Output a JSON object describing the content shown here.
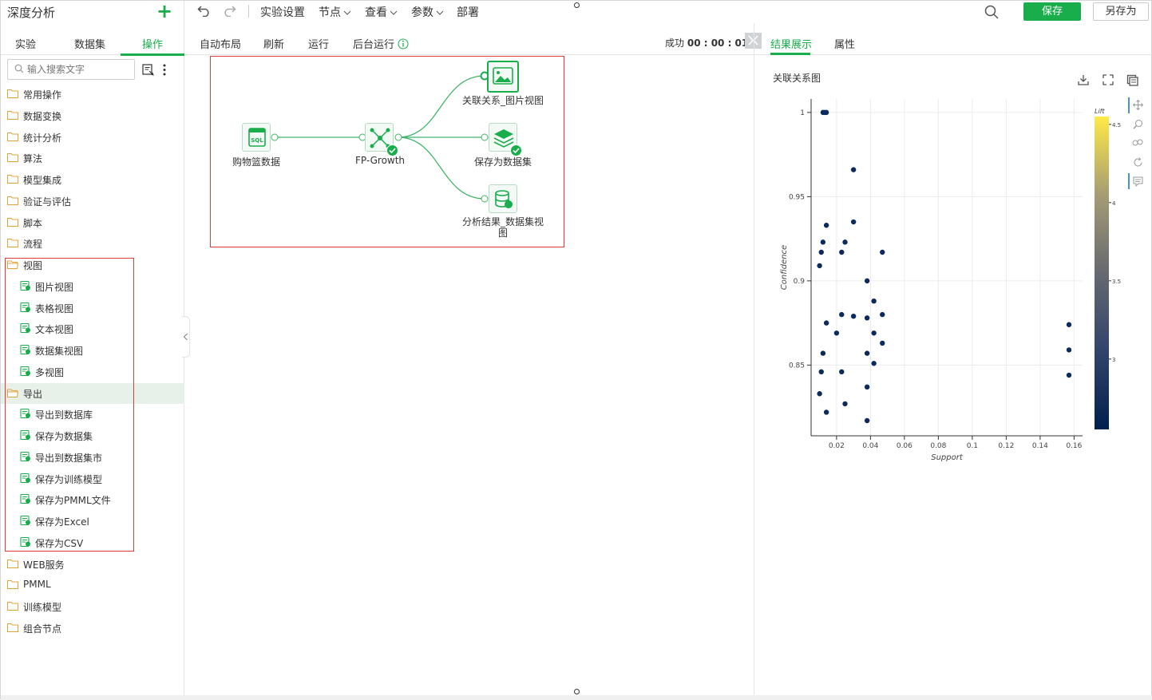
{
  "left_panel": {
    "title": "深度分析",
    "tabs": [
      "实验",
      "数据集",
      "操作"
    ],
    "search_placeholder": "输入搜索文字",
    "tree": [
      {
        "label": "常用操作",
        "type": "folder"
      },
      {
        "label": "数据变换",
        "type": "folder"
      },
      {
        "label": "统计分析",
        "type": "folder"
      },
      {
        "label": "算法",
        "type": "folder"
      },
      {
        "label": "模型集成",
        "type": "folder"
      },
      {
        "label": "验证与评估",
        "type": "folder"
      },
      {
        "label": "脚本",
        "type": "folder"
      },
      {
        "label": "流程",
        "type": "folder"
      },
      {
        "label": "视图",
        "type": "folder-open"
      },
      {
        "label": "图片视图",
        "type": "child"
      },
      {
        "label": "表格视图",
        "type": "child"
      },
      {
        "label": "文本视图",
        "type": "child"
      },
      {
        "label": "数据集视图",
        "type": "child"
      },
      {
        "label": "多视图",
        "type": "child"
      },
      {
        "label": "导出",
        "type": "folder-open",
        "selected": true
      },
      {
        "label": "导出到数据库",
        "type": "child"
      },
      {
        "label": "保存为数据集",
        "type": "child"
      },
      {
        "label": "导出到数据集市",
        "type": "child"
      },
      {
        "label": "保存为训练模型",
        "type": "child"
      },
      {
        "label": "保存为PMML文件",
        "type": "child"
      },
      {
        "label": "保存为Excel",
        "type": "child"
      },
      {
        "label": "保存为CSV",
        "type": "child"
      },
      {
        "label": "WEB服务",
        "type": "folder"
      },
      {
        "label": "PMML",
        "type": "folder"
      },
      {
        "label": "训练模型",
        "type": "folder"
      },
      {
        "label": "组合节点",
        "type": "folder"
      }
    ]
  },
  "toolbar": {
    "undo_icon": "undo-icon",
    "redo_icon": "redo-icon",
    "menu": [
      "实验设置",
      "节点",
      "查看",
      "参数",
      "部署"
    ],
    "save_label": "保存",
    "save_as_label": "另存为"
  },
  "subbar": {
    "items": [
      "自动布局",
      "刷新",
      "运行",
      "后台运行"
    ],
    "status_label": "成功",
    "status_time": "00 : 00 : 01"
  },
  "canvas": {
    "nodes": [
      {
        "label": "购物篮数据",
        "icon": "sql-icon"
      },
      {
        "label": "FP-Growth",
        "icon": "network-icon",
        "status": "success"
      },
      {
        "label": "关联关系_图片视图",
        "icon": "image-view-icon"
      },
      {
        "label": "保存为数据集",
        "icon": "layers-icon",
        "status": "success"
      },
      {
        "label": "分析结果_数据集视",
        "label2": "图",
        "icon": "dataset-view-icon"
      }
    ]
  },
  "right_panel": {
    "tabs": [
      "结果展示",
      "属性"
    ],
    "chart_title": "关联关系图"
  },
  "chart_data": {
    "type": "scatter",
    "title": "关联关系图",
    "xlabel": "Support",
    "ylabel": "Confidence",
    "xlim": [
      0.005,
      0.165
    ],
    "ylim": [
      0.808,
      1.008
    ],
    "xticks": [
      "0.02",
      "0.04",
      "0.06",
      "0.08",
      "0.1",
      "0.12",
      "0.14",
      "0.16"
    ],
    "xtick_values": [
      0.02,
      0.04,
      0.06,
      0.08,
      0.1,
      0.12,
      0.14,
      0.16
    ],
    "yticks": [
      "0.85",
      "0.9",
      "0.95",
      "1"
    ],
    "ytick_values": [
      0.85,
      0.9,
      0.95,
      1.0
    ],
    "colorbar": {
      "label": "Lift",
      "ticks": [
        "3",
        "3.5",
        "4",
        "4.5"
      ],
      "tick_values": [
        3,
        3.5,
        4,
        4.5
      ],
      "range": [
        2.55,
        4.55
      ]
    },
    "grid": true,
    "points": [
      {
        "x": 0.012,
        "y": 1.0
      },
      {
        "x": 0.013,
        "y": 1.0
      },
      {
        "x": 0.014,
        "y": 1.0
      },
      {
        "x": 0.03,
        "y": 0.966
      },
      {
        "x": 0.014,
        "y": 0.933
      },
      {
        "x": 0.03,
        "y": 0.935
      },
      {
        "x": 0.012,
        "y": 0.923
      },
      {
        "x": 0.025,
        "y": 0.923
      },
      {
        "x": 0.011,
        "y": 0.917
      },
      {
        "x": 0.023,
        "y": 0.917
      },
      {
        "x": 0.047,
        "y": 0.917
      },
      {
        "x": 0.01,
        "y": 0.909
      },
      {
        "x": 0.038,
        "y": 0.9
      },
      {
        "x": 0.042,
        "y": 0.888
      },
      {
        "x": 0.023,
        "y": 0.88
      },
      {
        "x": 0.03,
        "y": 0.879
      },
      {
        "x": 0.038,
        "y": 0.878
      },
      {
        "x": 0.047,
        "y": 0.88
      },
      {
        "x": 0.014,
        "y": 0.875
      },
      {
        "x": 0.02,
        "y": 0.869
      },
      {
        "x": 0.042,
        "y": 0.869
      },
      {
        "x": 0.047,
        "y": 0.863
      },
      {
        "x": 0.012,
        "y": 0.857
      },
      {
        "x": 0.038,
        "y": 0.857
      },
      {
        "x": 0.042,
        "y": 0.851
      },
      {
        "x": 0.011,
        "y": 0.846
      },
      {
        "x": 0.023,
        "y": 0.846
      },
      {
        "x": 0.038,
        "y": 0.837
      },
      {
        "x": 0.01,
        "y": 0.833
      },
      {
        "x": 0.025,
        "y": 0.827
      },
      {
        "x": 0.014,
        "y": 0.822
      },
      {
        "x": 0.038,
        "y": 0.817
      },
      {
        "x": 0.157,
        "y": 0.874
      },
      {
        "x": 0.157,
        "y": 0.859
      },
      {
        "x": 0.157,
        "y": 0.844
      }
    ]
  },
  "colors": {
    "accent": "#1aad4b",
    "highlight_box": "#e53935",
    "point": "#0d2a5c"
  }
}
